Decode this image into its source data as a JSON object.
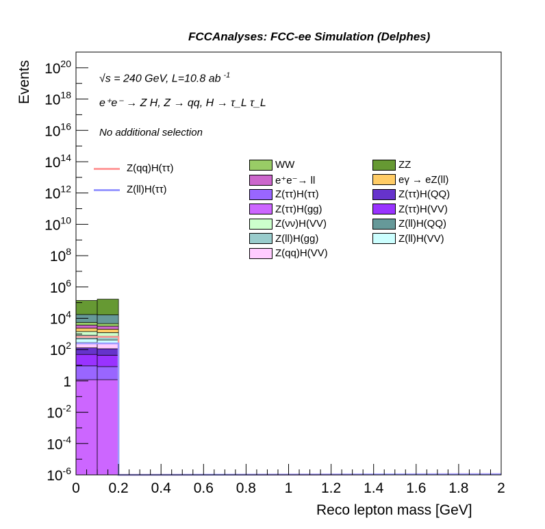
{
  "header": "FCCAnalyses: FCC-ee Simulation (Delphes)",
  "info": {
    "energy_line": "√s = 240 GeV, L=10.8 ab",
    "energy_sup": "-1",
    "process_line": "e⁺e⁻ → Z H, Z → qq, H → τ_L τ_L",
    "selection": "No additional selection"
  },
  "chart_data": {
    "type": "bar",
    "xlabel": "Reco lepton mass [GeV]",
    "ylabel": "Events",
    "xlim": [
      0,
      2
    ],
    "ylim": [
      1e-06,
      1e+21
    ],
    "log_y": true,
    "x_ticks": [
      "0",
      "0.2",
      "0.4",
      "0.6",
      "0.8",
      "1",
      "1.2",
      "1.4",
      "1.6",
      "1.8",
      "2"
    ],
    "y_ticks": [
      {
        "base": "10",
        "exp": "20",
        "value": 1e+20
      },
      {
        "base": "10",
        "exp": "18",
        "value": 1e+18
      },
      {
        "base": "10",
        "exp": "16",
        "value": 1e+16
      },
      {
        "base": "10",
        "exp": "14",
        "value": 100000000000000.0
      },
      {
        "base": "10",
        "exp": "12",
        "value": 1000000000000.0
      },
      {
        "base": "10",
        "exp": "10",
        "value": 10000000000.0
      },
      {
        "base": "10",
        "exp": "8",
        "value": 100000000.0
      },
      {
        "base": "10",
        "exp": "6",
        "value": 1000000.0
      },
      {
        "base": "10",
        "exp": "4",
        "value": 10000.0
      },
      {
        "base": "10",
        "exp": "2",
        "value": 100.0
      },
      {
        "base": "1",
        "exp": "",
        "value": 1
      },
      {
        "base": "10",
        "exp": "-2",
        "value": 0.01
      },
      {
        "base": "10",
        "exp": "-4",
        "value": 0.0001
      },
      {
        "base": "10",
        "exp": "-6",
        "value": 1e-06
      }
    ],
    "bin_edges": [
      0,
      0.1,
      0.2
    ],
    "stack_series": [
      {
        "name": "Z(ττ)H(gg)",
        "color": "#cc66ff",
        "values": [
          1.2,
          1.2
        ]
      },
      {
        "name": "Z(ττ)H(ττ)",
        "color": "#9966ff",
        "values": [
          8,
          7
        ]
      },
      {
        "name": "Z(ττ)H(VV)",
        "color": "#9933ff",
        "values": [
          40,
          35
        ]
      },
      {
        "name": "Z(ττ)H(QQ)",
        "color": "#6633cc",
        "values": [
          80,
          70
        ]
      },
      {
        "name": "Z(qq)H(VV)",
        "color": "#ffccff",
        "values": [
          150,
          130
        ]
      },
      {
        "name": "Z(ll)H(VV)",
        "color": "#ccffff",
        "values": [
          200,
          170
        ]
      },
      {
        "name": "Z(ll)H(gg)",
        "color": "#99cccc",
        "values": [
          350,
          300
        ]
      },
      {
        "name": "Z(νν)H(VV)",
        "color": "#ccffcc",
        "values": [
          600,
          500
        ]
      },
      {
        "name": "eγ → eZ(ll)",
        "color": "#ffcc66",
        "values": [
          900,
          800
        ]
      },
      {
        "name": "e⁺e⁻→ ll",
        "color": "#cc66cc",
        "values": [
          1300,
          1100
        ]
      },
      {
        "name": "WW",
        "color": "#99cc66",
        "values": [
          1800,
          1500
        ]
      },
      {
        "name": "Z(ll)H(QQ)",
        "color": "#669999",
        "values": [
          12000,
          12000
        ]
      },
      {
        "name": "ZZ",
        "color": "#669933",
        "values": [
          120000,
          150000
        ]
      }
    ],
    "line_series": [
      {
        "name": "Z(qq)H(ττ)",
        "color": "#ff9999",
        "values": [
          650,
          650
        ]
      },
      {
        "name": "Z(ll)H(ττ)",
        "color": "#9999ff",
        "values": [
          250,
          250
        ]
      }
    ],
    "legend_lines": [
      "Z(qq)H(ττ)",
      "Z(ll)H(ττ)"
    ],
    "legend_boxes": [
      {
        "label": "WW",
        "color": "#99cc66"
      },
      {
        "label": "ZZ",
        "color": "#669933"
      },
      {
        "label": "e⁺e⁻→ ll",
        "color": "#cc66cc"
      },
      {
        "label": "eγ → eZ(ll)",
        "color": "#ffcc66"
      },
      {
        "label": "Z(ττ)H(ττ)",
        "color": "#9966ff"
      },
      {
        "label": "Z(ττ)H(QQ)",
        "color": "#6633cc"
      },
      {
        "label": "Z(ττ)H(gg)",
        "color": "#cc66ff"
      },
      {
        "label": "Z(ττ)H(VV)",
        "color": "#9933ff"
      },
      {
        "label": "Z(νν)H(VV)",
        "color": "#ccffcc"
      },
      {
        "label": "Z(ll)H(QQ)",
        "color": "#669999"
      },
      {
        "label": "Z(ll)H(gg)",
        "color": "#99cccc"
      },
      {
        "label": "Z(ll)H(VV)",
        "color": "#ccffff"
      },
      {
        "label": "Z(qq)H(VV)",
        "color": "#ffccff"
      }
    ]
  }
}
